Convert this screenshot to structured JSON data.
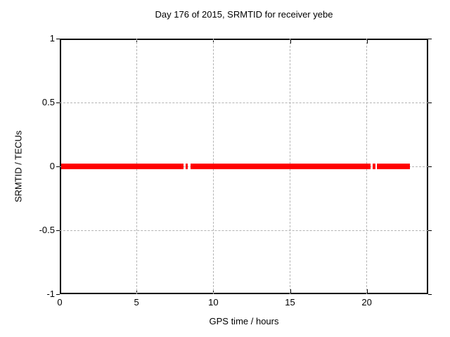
{
  "chart_data": {
    "type": "line",
    "title": "Day 176 of 2015, SRMTID for receiver yebe",
    "xlabel": "GPS time / hours",
    "ylabel": "SRMTID / TECUs",
    "xlim": [
      0,
      24
    ],
    "ylim": [
      -1,
      1
    ],
    "xticks": [
      0,
      5,
      10,
      15,
      20
    ],
    "yticks": [
      -1,
      -0.5,
      0,
      0.5,
      1
    ],
    "grid": true,
    "legend_position": "none",
    "series": [
      {
        "name": "SRMTID",
        "color": "#ff0000",
        "y_value": 0,
        "line_thickness_px": 8,
        "segments_x_hours": [
          [
            0.1,
            8.05
          ],
          [
            8.2,
            8.35
          ],
          [
            8.5,
            20.25
          ],
          [
            20.4,
            20.55
          ],
          [
            20.65,
            22.8
          ]
        ]
      }
    ]
  },
  "colors": {
    "data_line": "#ff0000",
    "grid_line": "#b4b4b4",
    "axis_border": "#000000",
    "text": "#000000",
    "background": "#ffffff"
  }
}
